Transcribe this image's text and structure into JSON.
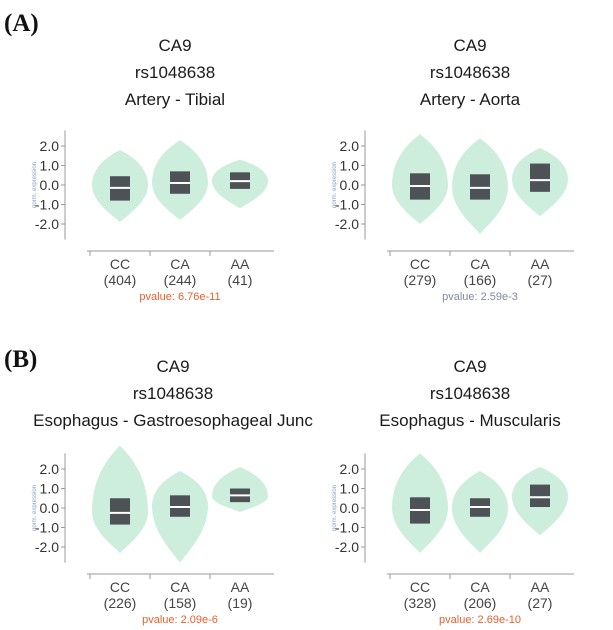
{
  "sections": [
    {
      "label": "(A)"
    },
    {
      "label": "(B)"
    }
  ],
  "colors": {
    "violin_fill": "#cdeedd",
    "box_fill": "#4d5257",
    "median": "#ffffff",
    "axis": "#9a9a9a",
    "pvalue_significant": "#e8602c",
    "pvalue_neutral": "#7c8a9c"
  },
  "chart_data": [
    {
      "type": "violin",
      "gene": "CA9",
      "snp": "rs1048638",
      "tissue": "Artery - Tibial",
      "ytick_labels": [
        "2.0",
        "1.0",
        "0.0",
        "-1.0",
        "-2.0"
      ],
      "ylim": [
        -2.8,
        2.8
      ],
      "ylabel": "norm. expression",
      "categories": [
        "CC",
        "CA",
        "AA"
      ],
      "counts": [
        "(404)",
        "(244)",
        "(41)"
      ],
      "pvalue": "pvalue: 6.76e-11",
      "pvalue_color": "#e8602c",
      "groups": [
        {
          "q1": -0.8,
          "median": -0.15,
          "q3": 0.45,
          "vmin": -1.9,
          "vmax": 1.8,
          "peak": 0.0
        },
        {
          "q1": -0.45,
          "median": 0.1,
          "q3": 0.7,
          "vmin": -1.8,
          "vmax": 2.3,
          "peak": 0.1
        },
        {
          "q1": -0.2,
          "median": 0.2,
          "q3": 0.65,
          "vmin": -1.2,
          "vmax": 1.3,
          "peak": 0.2
        }
      ]
    },
    {
      "type": "violin",
      "gene": "CA9",
      "snp": "rs1048638",
      "tissue": "Artery - Aorta",
      "ytick_labels": [
        "2.0",
        "1.0",
        "0.0",
        "-1.0",
        "-2.0"
      ],
      "ylim": [
        -2.8,
        2.8
      ],
      "ylabel": "norm. expression",
      "categories": [
        "CC",
        "CA",
        "AA"
      ],
      "counts": [
        "(279)",
        "(166)",
        "(27)"
      ],
      "pvalue": "pvalue: 2.59e-3",
      "pvalue_color": "#7c8a9c",
      "groups": [
        {
          "q1": -0.75,
          "median": -0.05,
          "q3": 0.6,
          "vmin": -2.0,
          "vmax": 2.6,
          "peak": 0.0
        },
        {
          "q1": -0.75,
          "median": -0.15,
          "q3": 0.55,
          "vmin": -2.5,
          "vmax": 2.4,
          "peak": -0.1
        },
        {
          "q1": -0.35,
          "median": 0.25,
          "q3": 1.1,
          "vmin": -1.6,
          "vmax": 1.9,
          "peak": 0.3
        }
      ]
    },
    {
      "type": "violin",
      "gene": "CA9",
      "snp": "rs1048638",
      "tissue": "Esophagus - Gastroesophageal Junc",
      "ytick_labels": [
        "2.0",
        "1.0",
        "0.0",
        "-1.0",
        "-2.0"
      ],
      "ylim": [
        -2.8,
        2.8
      ],
      "ylabel": "norm. expression",
      "categories": [
        "CC",
        "CA",
        "AA"
      ],
      "counts": [
        "(226)",
        "(158)",
        "(19)"
      ],
      "pvalue": "pvalue: 2.09e-6",
      "pvalue_color": "#e8602c",
      "groups": [
        {
          "q1": -0.85,
          "median": -0.25,
          "q3": 0.5,
          "vmin": -2.3,
          "vmax": 3.2,
          "peak": -0.2
        },
        {
          "q1": -0.45,
          "median": 0.05,
          "q3": 0.65,
          "vmin": -2.8,
          "vmax": 1.9,
          "peak": 0.1
        },
        {
          "q1": 0.3,
          "median": 0.65,
          "q3": 1.0,
          "vmin": -0.2,
          "vmax": 2.1,
          "peak": 0.6
        }
      ]
    },
    {
      "type": "violin",
      "gene": "CA9",
      "snp": "rs1048638",
      "tissue": "Esophagus - Muscularis",
      "ytick_labels": [
        "2.0",
        "1.0",
        "0.0",
        "-1.0",
        "-2.0"
      ],
      "ylim": [
        -2.8,
        2.8
      ],
      "ylabel": "norm. expression",
      "categories": [
        "CC",
        "CA",
        "AA"
      ],
      "counts": [
        "(328)",
        "(206)",
        "(27)"
      ],
      "pvalue": "pvalue: 2.69e-10",
      "pvalue_color": "#e8602c",
      "groups": [
        {
          "q1": -0.8,
          "median": -0.1,
          "q3": 0.55,
          "vmin": -2.3,
          "vmax": 2.8,
          "peak": 0.0
        },
        {
          "q1": -0.45,
          "median": 0.05,
          "q3": 0.5,
          "vmin": -2.3,
          "vmax": 1.9,
          "peak": 0.0
        },
        {
          "q1": 0.05,
          "median": 0.55,
          "q3": 1.2,
          "vmin": -1.4,
          "vmax": 2.1,
          "peak": 0.6
        }
      ]
    }
  ]
}
